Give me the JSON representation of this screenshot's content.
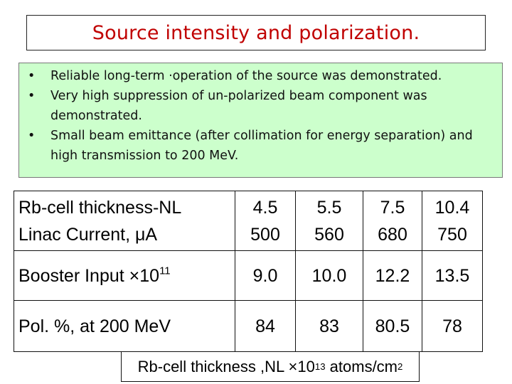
{
  "title": "Source intensity and polarization.",
  "bullets": [
    {
      "marker": "•",
      "text": "Reliable long-term ·operation of the source  was demonstrated."
    },
    {
      "marker": "•",
      "text": "Very high suppression of un-polarized beam component was demonstrated."
    },
    {
      "marker": "•",
      "text": "Small beam emittance (after  collimation for energy separation) and high transmission to 200 MeV."
    }
  ],
  "table": {
    "rows": [
      {
        "label_lines": [
          "Rb-cell thickness-NL",
          "Linac Current, μA"
        ],
        "cells": [
          [
            "4.5",
            "500"
          ],
          [
            "5.5",
            "560"
          ],
          [
            "7.5",
            "680"
          ],
          [
            "10.4",
            "750"
          ]
        ]
      },
      {
        "label": "Booster Input ×10",
        "label_sup": "11",
        "cells": [
          [
            "9.0"
          ],
          [
            "10.0"
          ],
          [
            "12.2"
          ],
          [
            "13.5"
          ]
        ]
      },
      {
        "label": "Pol. %, at 200 MeV",
        "cells": [
          [
            "84"
          ],
          [
            "83"
          ],
          [
            "80.5"
          ],
          [
            "78"
          ]
        ]
      }
    ]
  },
  "footnote": {
    "text": "Rb-cell thickness ,NL ×10",
    "sup": "13",
    "suffix": " atoms/cm",
    "sup2": "2"
  }
}
